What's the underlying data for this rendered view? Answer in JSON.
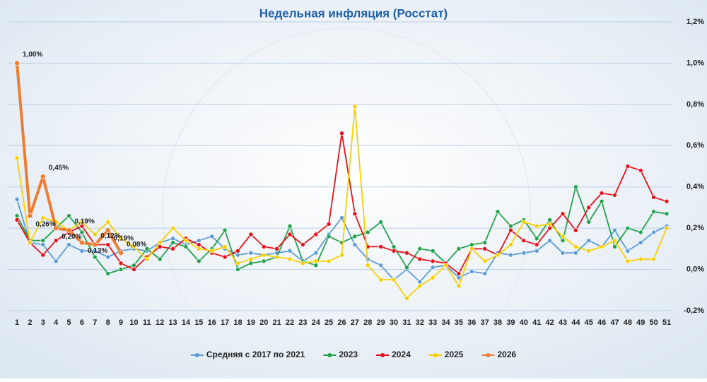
{
  "chart_data": {
    "type": "line",
    "title": "Недельная инфляция (Росстат)",
    "categories": [
      1,
      2,
      3,
      4,
      5,
      6,
      7,
      8,
      9,
      10,
      11,
      12,
      13,
      14,
      15,
      16,
      17,
      18,
      19,
      20,
      21,
      22,
      23,
      24,
      25,
      26,
      27,
      28,
      29,
      30,
      31,
      32,
      33,
      34,
      35,
      36,
      37,
      38,
      39,
      40,
      41,
      42,
      43,
      44,
      45,
      46,
      47,
      48,
      49,
      50,
      51
    ],
    "ylim": [
      -0.2,
      1.2
    ],
    "yticks": [
      {
        "value": -0.2,
        "label": "-0,2%"
      },
      {
        "value": 0,
        "label": "0,0%"
      },
      {
        "value": 0.2,
        "label": "0,2%"
      },
      {
        "value": 0.4,
        "label": "0,4%"
      },
      {
        "value": 0.6,
        "label": "0,6%"
      },
      {
        "value": 0.8,
        "label": "0,8%"
      },
      {
        "value": 1.0,
        "label": "1,0%"
      },
      {
        "value": 1.2,
        "label": "1,2%"
      }
    ],
    "grid": true,
    "legend": "bottom",
    "series": [
      {
        "name": "Средняя с 2017 по 2021",
        "color": "#5b9bd5",
        "values": [
          0.34,
          0.13,
          0.12,
          0.04,
          0.12,
          0.09,
          0.09,
          0.06,
          0.09,
          0.1,
          0.09,
          0.13,
          0.15,
          0.12,
          0.14,
          0.16,
          0.1,
          0.07,
          0.08,
          0.07,
          0.08,
          0.09,
          0.04,
          0.08,
          0.17,
          0.25,
          0.12,
          0.05,
          0.02,
          -0.05,
          0.0,
          -0.06,
          0.01,
          0.02,
          -0.04,
          -0.01,
          -0.02,
          0.08,
          0.07,
          0.08,
          0.09,
          0.14,
          0.08,
          0.08,
          0.14,
          0.11,
          0.19,
          0.09,
          0.13,
          0.18,
          0.21
        ]
      },
      {
        "name": "2023",
        "color": "#22a04b",
        "values": [
          0.26,
          0.14,
          0.14,
          0.2,
          0.26,
          0.18,
          0.06,
          -0.02,
          0.0,
          0.02,
          0.1,
          0.05,
          0.13,
          0.11,
          0.04,
          0.1,
          0.19,
          0.0,
          0.03,
          0.04,
          0.06,
          0.21,
          0.04,
          0.02,
          0.16,
          0.13,
          0.16,
          0.18,
          0.23,
          0.11,
          0.01,
          0.1,
          0.09,
          0.03,
          0.1,
          0.12,
          0.13,
          0.28,
          0.21,
          0.24,
          0.15,
          0.24,
          0.14,
          0.4,
          0.23,
          0.33,
          0.11,
          0.2,
          0.18,
          0.28,
          0.27
        ]
      },
      {
        "name": "2024",
        "color": "#e3121a",
        "values": [
          0.24,
          0.13,
          0.07,
          0.14,
          0.18,
          0.21,
          0.12,
          0.12,
          0.03,
          0.0,
          0.06,
          0.11,
          0.1,
          0.15,
          0.12,
          0.08,
          0.06,
          0.09,
          0.17,
          0.11,
          0.1,
          0.17,
          0.12,
          0.17,
          0.22,
          0.66,
          0.27,
          0.11,
          0.11,
          0.09,
          0.08,
          0.05,
          0.04,
          0.03,
          -0.02,
          0.1,
          0.1,
          0.07,
          0.19,
          0.14,
          0.12,
          0.2,
          0.27,
          0.19,
          0.3,
          0.37,
          0.36,
          0.5,
          0.48,
          0.35,
          0.33
        ]
      },
      {
        "name": "2025",
        "color": "#f7cf00",
        "values": [
          0.54,
          0.13,
          0.25,
          0.23,
          0.19,
          0.23,
          0.17,
          0.23,
          0.15,
          0.11,
          0.05,
          0.13,
          0.2,
          0.14,
          0.1,
          0.09,
          0.11,
          0.03,
          0.05,
          0.07,
          0.06,
          0.05,
          0.03,
          0.04,
          0.04,
          0.07,
          0.79,
          0.02,
          -0.05,
          -0.05,
          -0.14,
          -0.08,
          -0.04,
          0.02,
          -0.08,
          0.1,
          0.04,
          0.07,
          0.12,
          0.23,
          0.21,
          0.22,
          0.16,
          0.11,
          0.09,
          0.11,
          0.14,
          0.04,
          0.05,
          0.05,
          0.2
        ]
      },
      {
        "name": "2026",
        "color": "#ed7d31",
        "values": [
          1.0,
          0.26,
          0.45,
          0.2,
          0.19,
          0.13,
          0.12,
          0.19,
          0.08,
          null,
          null,
          null,
          null,
          null,
          null,
          null,
          null,
          null,
          null,
          null,
          null,
          null,
          null,
          null,
          null,
          null,
          null,
          null,
          null,
          null,
          null,
          null,
          null,
          null,
          null,
          null,
          null,
          null,
          null,
          null,
          null,
          null,
          null,
          null,
          null,
          null,
          null,
          null,
          null,
          null,
          null
        ],
        "value_labels": [
          "1,00%",
          "0,26%",
          "0,45%",
          "0,20%",
          "0,19%",
          "0,13%",
          "0,12%",
          "0,19%",
          "0,08%",
          null,
          null,
          null,
          null,
          null,
          null,
          null,
          null,
          null,
          null,
          null,
          null,
          null,
          null,
          null,
          null,
          null,
          null,
          null,
          null,
          null,
          null,
          null,
          null,
          null,
          null,
          null,
          null,
          null,
          null,
          null,
          null,
          null,
          null,
          null,
          null,
          null,
          null,
          null,
          null,
          null,
          null
        ]
      }
    ]
  }
}
